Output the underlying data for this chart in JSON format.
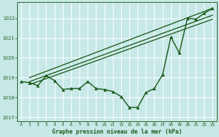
{
  "bg_color": "#c8e8e8",
  "grid_color": "#ffffff",
  "line_color": "#1a5c1a",
  "title": "Graphe pression niveau de la mer (hPa)",
  "xlim": [
    -0.5,
    23.5
  ],
  "ylim": [
    1016.8,
    1022.8
  ],
  "yticks": [
    1017,
    1018,
    1019,
    1020,
    1021,
    1022
  ],
  "xticks": [
    0,
    1,
    2,
    3,
    4,
    5,
    6,
    7,
    8,
    9,
    10,
    11,
    12,
    13,
    14,
    15,
    16,
    17,
    18,
    19,
    20,
    21,
    22,
    23
  ],
  "series": [
    {
      "x": [
        0,
        1,
        2,
        3,
        4,
        5,
        6,
        7,
        8,
        9,
        10,
        11,
        12,
        13,
        14,
        15,
        16,
        17,
        18,
        19,
        20,
        21,
        22,
        23
      ],
      "y": [
        1018.8,
        1018.75,
        1018.6,
        1019.1,
        1018.85,
        1018.4,
        1018.45,
        1018.45,
        1018.8,
        1018.45,
        1018.4,
        1018.3,
        1018.05,
        1017.5,
        1017.5,
        1018.25,
        1018.45,
        1019.15,
        1021.05,
        1020.25,
        1022.0,
        1021.95,
        1022.25,
        1022.5
      ],
      "marker": "^",
      "markersize": 2.8,
      "linewidth": 1.1,
      "zorder": 3
    },
    {
      "x": [
        1,
        23
      ],
      "y": [
        1019.0,
        1022.5
      ],
      "marker": null,
      "linewidth": 1.0,
      "zorder": 2
    },
    {
      "x": [
        1,
        23
      ],
      "y": [
        1018.8,
        1022.15
      ],
      "marker": null,
      "linewidth": 1.0,
      "zorder": 2
    },
    {
      "x": [
        1,
        23
      ],
      "y": [
        1018.65,
        1021.95
      ],
      "marker": null,
      "linewidth": 1.0,
      "zorder": 2
    }
  ],
  "title_fontsize": 6.0,
  "tick_fontsize": 5.0,
  "figsize": [
    3.2,
    2.0
  ],
  "dpi": 100
}
